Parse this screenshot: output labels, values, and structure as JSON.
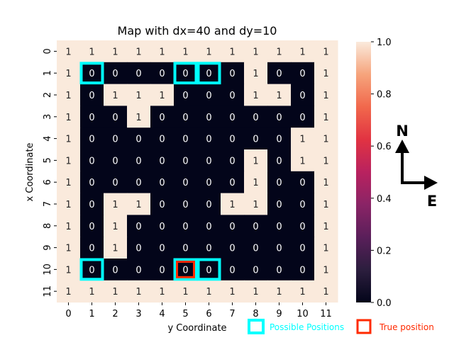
{
  "chart_data": {
    "type": "heatmap",
    "title": "Map with dx=40 and dy=10",
    "xlabel": "y Coordinate",
    "ylabel": "x Coordinate",
    "x_ticks": [
      "0",
      "1",
      "2",
      "3",
      "4",
      "5",
      "6",
      "7",
      "8",
      "9",
      "10",
      "11"
    ],
    "y_ticks": [
      "0",
      "1",
      "2",
      "3",
      "4",
      "5",
      "6",
      "7",
      "8",
      "9",
      "10",
      "11"
    ],
    "grid": [
      [
        1,
        1,
        1,
        1,
        1,
        1,
        1,
        1,
        1,
        1,
        1,
        1
      ],
      [
        1,
        0,
        0,
        0,
        0,
        0,
        0,
        0,
        1,
        0,
        0,
        1
      ],
      [
        1,
        0,
        1,
        1,
        1,
        0,
        0,
        0,
        1,
        1,
        0,
        1
      ],
      [
        1,
        0,
        0,
        1,
        0,
        0,
        0,
        0,
        0,
        0,
        0,
        1
      ],
      [
        1,
        0,
        0,
        0,
        0,
        0,
        0,
        0,
        0,
        0,
        1,
        1
      ],
      [
        1,
        0,
        0,
        0,
        0,
        0,
        0,
        0,
        1,
        0,
        1,
        1
      ],
      [
        1,
        0,
        0,
        0,
        0,
        0,
        0,
        0,
        1,
        0,
        0,
        1
      ],
      [
        1,
        0,
        1,
        1,
        0,
        0,
        0,
        1,
        1,
        0,
        0,
        1
      ],
      [
        1,
        0,
        1,
        0,
        0,
        0,
        0,
        0,
        0,
        0,
        0,
        1
      ],
      [
        1,
        0,
        1,
        0,
        0,
        0,
        0,
        0,
        0,
        0,
        0,
        1
      ],
      [
        1,
        0,
        0,
        0,
        0,
        0,
        0,
        0,
        0,
        0,
        0,
        1
      ],
      [
        1,
        1,
        1,
        1,
        1,
        1,
        1,
        1,
        1,
        1,
        1,
        1
      ]
    ],
    "colorbar": {
      "min": 0.0,
      "max": 1.0,
      "ticks": [
        "0.0",
        "0.2",
        "0.4",
        "0.6",
        "0.8",
        "1.0"
      ]
    },
    "possible_positions": [
      [
        1,
        1
      ],
      [
        1,
        5
      ],
      [
        1,
        6
      ],
      [
        10,
        1
      ],
      [
        10,
        5
      ],
      [
        10,
        6
      ]
    ],
    "true_position": [
      10,
      5
    ],
    "colors": {
      "one": "#faeadc",
      "zero": "#03051a",
      "possible": "#00ffff",
      "true": "#ff2a00"
    },
    "compass": {
      "north": "N",
      "east": "E"
    },
    "legend": {
      "possible_label": "Possible Positions",
      "true_label": "True position",
      "placement": "bottom-right"
    }
  }
}
